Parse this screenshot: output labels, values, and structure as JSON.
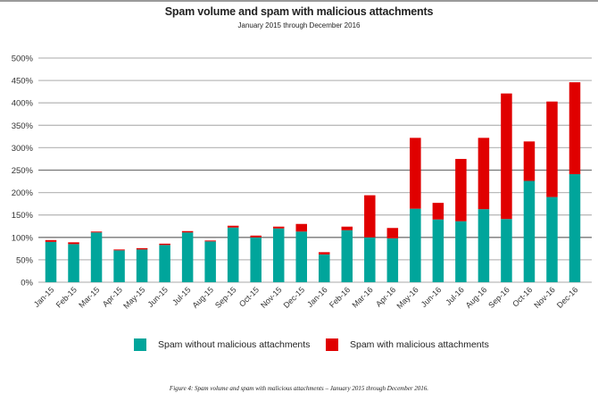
{
  "chart_data": {
    "type": "bar",
    "stacked": true,
    "title": "Spam volume and spam with malicious attachments",
    "subtitle": "January 2015 through December 2016",
    "xlabel": "",
    "ylabel": "",
    "ylim": [
      0,
      500
    ],
    "yticks": [
      "0%",
      "50%",
      "100%",
      "150%",
      "200%",
      "250%",
      "300%",
      "350%",
      "400%",
      "450%",
      "500%"
    ],
    "grid": true,
    "legend_position": "bottom",
    "categories": [
      "Jan-15",
      "Feb-15",
      "Mar-15",
      "Apr-15",
      "May-15",
      "Jun-15",
      "Jul-15",
      "Aug-15",
      "Sep-15",
      "Oct-15",
      "Nov-15",
      "Dec-15",
      "Jan-16",
      "Feb-16",
      "Mar-16",
      "Apr-16",
      "May-16",
      "Jun-16",
      "Jul-16",
      "Aug-16",
      "Sep-16",
      "Oct-16",
      "Nov-16",
      "Dec-16"
    ],
    "series": [
      {
        "name": "Spam without malicious attachments",
        "color": "#00a59b",
        "values": [
          90,
          85,
          111,
          71,
          73,
          83,
          111,
          91,
          122,
          100,
          120,
          113,
          62,
          116,
          100,
          98,
          164,
          140,
          136,
          163,
          141,
          226,
          190,
          241
        ]
      },
      {
        "name": "Spam with malicious attachments",
        "color": "#e00000",
        "values": [
          4,
          4,
          2,
          2,
          3,
          3,
          3,
          2,
          4,
          4,
          4,
          17,
          5,
          8,
          94,
          23,
          158,
          37,
          139,
          159,
          280,
          88,
          213,
          205
        ]
      }
    ],
    "caption": "Figure 4: Spam volume and spam with malicious attachments – January 2015 through December 2016."
  }
}
